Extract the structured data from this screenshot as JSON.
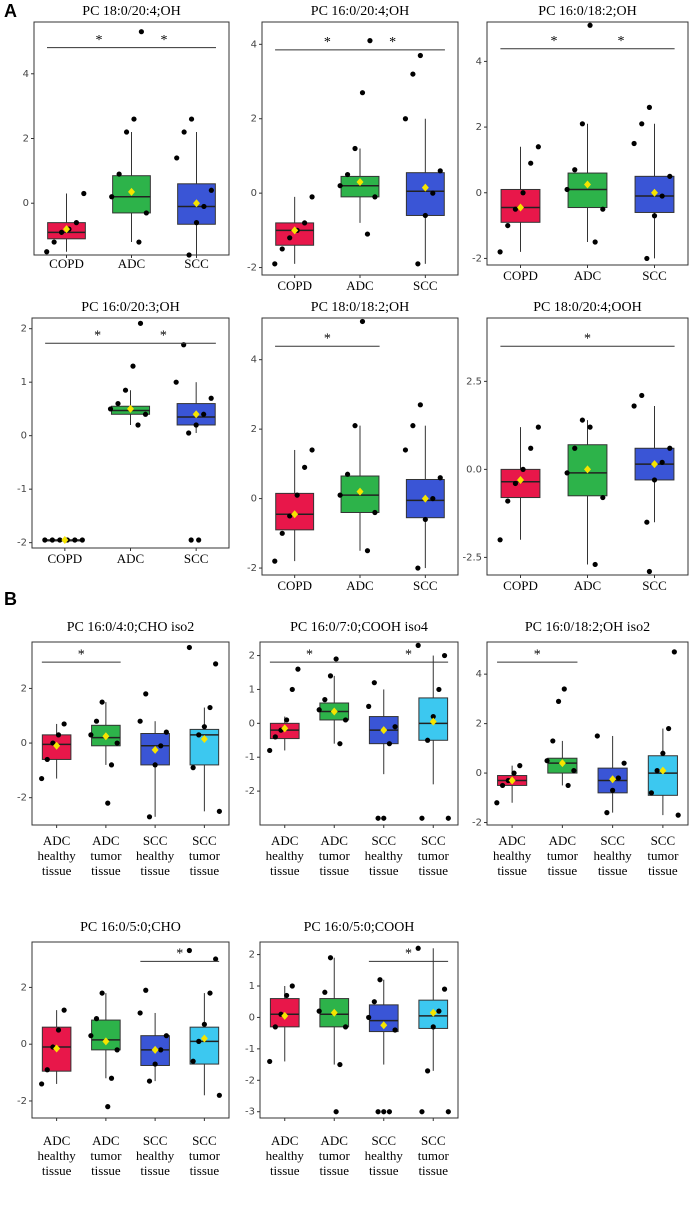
{
  "panel_labels": [
    "A",
    "B"
  ],
  "chart_data": [
    {
      "type": "box",
      "title": "PC 18:0/20:4;OH",
      "categories": [
        "COPD",
        "ADC",
        "SCC"
      ],
      "colors": [
        "#e8174a",
        "#2db34a",
        "#3a55d6"
      ],
      "ylim": [
        -1.6,
        5.6
      ],
      "yticks": [
        0,
        2,
        4
      ],
      "whisker_low": [
        -1.5,
        -1.2,
        -1.6
      ],
      "q1": [
        -1.1,
        -0.3,
        -0.65
      ],
      "median": [
        -0.9,
        0.2,
        -0.1
      ],
      "q3": [
        -0.6,
        0.85,
        0.6
      ],
      "whisker_high": [
        0.3,
        2.2,
        2.2
      ],
      "mean": [
        -0.8,
        0.35,
        0.0
      ],
      "points": [
        [
          -1.5,
          -1.2,
          -0.9,
          -0.8,
          -0.6,
          0.3
        ],
        [
          -1.2,
          -0.3,
          0.2,
          0.9,
          2.2,
          2.6,
          5.3
        ],
        [
          -1.6,
          -0.6,
          -0.1,
          0.4,
          1.4,
          2.2,
          2.6
        ]
      ],
      "significance": [
        {
          "label": "*",
          "from": "COPD",
          "to": "ADC"
        },
        {
          "label": "*",
          "from": "ADC",
          "to": "SCC"
        }
      ]
    },
    {
      "type": "box",
      "title": "PC 16:0/20:4;OH",
      "categories": [
        "COPD",
        "ADC",
        "SCC"
      ],
      "colors": [
        "#e8174a",
        "#2db34a",
        "#3a55d6"
      ],
      "ylim": [
        -2.2,
        4.6
      ],
      "yticks": [
        -2,
        0,
        2,
        4
      ],
      "whisker_low": [
        -1.9,
        -0.8,
        -1.9
      ],
      "q1": [
        -1.4,
        -0.1,
        -0.6
      ],
      "median": [
        -1.0,
        0.2,
        0.05
      ],
      "q3": [
        -0.8,
        0.45,
        0.55
      ],
      "whisker_high": [
        -0.1,
        1.2,
        2.0
      ],
      "mean": [
        -1.0,
        0.3,
        0.15
      ],
      "points": [
        [
          -1.9,
          -1.5,
          -1.2,
          -1.0,
          -0.8,
          -0.1
        ],
        [
          -1.1,
          -0.1,
          0.2,
          0.5,
          1.2,
          2.7,
          4.1
        ],
        [
          -1.9,
          -0.6,
          0.0,
          0.6,
          2.0,
          3.2,
          3.7
        ]
      ],
      "significance": [
        {
          "label": "*",
          "from": "COPD",
          "to": "ADC"
        },
        {
          "label": "*",
          "from": "ADC",
          "to": "SCC"
        }
      ]
    },
    {
      "type": "box",
      "title": "PC 16:0/18:2;OH",
      "categories": [
        "COPD",
        "ADC",
        "SCC"
      ],
      "colors": [
        "#e8174a",
        "#2db34a",
        "#3a55d6"
      ],
      "ylim": [
        -2.2,
        5.2
      ],
      "yticks": [
        -2,
        0,
        2,
        4
      ],
      "whisker_low": [
        -1.8,
        -1.5,
        -2.0
      ],
      "q1": [
        -0.9,
        -0.45,
        -0.6
      ],
      "median": [
        -0.45,
        0.1,
        -0.1
      ],
      "q3": [
        0.1,
        0.6,
        0.5
      ],
      "whisker_high": [
        1.4,
        2.1,
        2.1
      ],
      "mean": [
        -0.45,
        0.25,
        0.0
      ],
      "points": [
        [
          -1.8,
          -1.0,
          -0.5,
          0.0,
          0.9,
          1.4
        ],
        [
          -1.5,
          -0.5,
          0.1,
          0.7,
          2.1,
          5.1
        ],
        [
          -2.0,
          -0.7,
          -0.1,
          0.5,
          1.5,
          2.1,
          2.6
        ]
      ],
      "significance": [
        {
          "label": "*",
          "from": "COPD",
          "to": "ADC"
        },
        {
          "label": "*",
          "from": "ADC",
          "to": "SCC"
        }
      ]
    },
    {
      "type": "box",
      "title": "PC 16:0/20:3;OH",
      "categories": [
        "COPD",
        "ADC",
        "SCC"
      ],
      "colors": [
        "#e8174a",
        "#2db34a",
        "#3a55d6"
      ],
      "ylim": [
        -2.1,
        2.2
      ],
      "yticks": [
        -2,
        -1,
        0,
        1,
        2
      ],
      "whisker_low": [
        -1.95,
        0.2,
        0.05
      ],
      "q1": [
        -1.95,
        0.4,
        0.2
      ],
      "median": [
        -1.95,
        0.47,
        0.35
      ],
      "q3": [
        -1.95,
        0.55,
        0.6
      ],
      "whisker_high": [
        -1.95,
        0.85,
        1.0
      ],
      "mean": [
        -1.95,
        0.5,
        0.4
      ],
      "points": [
        [
          -1.95,
          -1.95,
          -1.95,
          -1.95,
          -1.95,
          -1.95
        ],
        [
          0.2,
          0.4,
          0.5,
          0.6,
          0.85,
          1.3,
          2.1
        ],
        [
          0.05,
          0.2,
          0.4,
          0.7,
          1.0,
          1.7,
          -1.95,
          -1.95
        ]
      ],
      "significance": [
        {
          "label": "*",
          "from": "COPD",
          "to": "ADC"
        },
        {
          "label": "*",
          "from": "ADC",
          "to": "SCC"
        }
      ]
    },
    {
      "type": "box",
      "title": "PC 18:0/18:2;OH",
      "categories": [
        "COPD",
        "ADC",
        "SCC"
      ],
      "colors": [
        "#e8174a",
        "#2db34a",
        "#3a55d6"
      ],
      "ylim": [
        -2.2,
        5.2
      ],
      "yticks": [
        -2,
        0,
        2,
        4
      ],
      "whisker_low": [
        -1.8,
        -1.5,
        -2.0
      ],
      "q1": [
        -0.9,
        -0.4,
        -0.55
      ],
      "median": [
        -0.45,
        0.1,
        -0.05
      ],
      "q3": [
        0.15,
        0.65,
        0.55
      ],
      "whisker_high": [
        1.4,
        2.1,
        2.1
      ],
      "mean": [
        -0.45,
        0.2,
        0.0
      ],
      "points": [
        [
          -1.8,
          -1.0,
          -0.5,
          0.1,
          0.9,
          1.4
        ],
        [
          -1.5,
          -0.4,
          0.1,
          0.7,
          2.1,
          5.1
        ],
        [
          -2.0,
          -0.6,
          0.0,
          0.6,
          1.4,
          2.1,
          2.7
        ]
      ],
      "significance": [
        {
          "label": "*",
          "from": "COPD",
          "to": "ADC"
        }
      ]
    },
    {
      "type": "box",
      "title": "PC 18:0/20:4;OOH",
      "categories": [
        "COPD",
        "ADC",
        "SCC"
      ],
      "colors": [
        "#e8174a",
        "#2db34a",
        "#3a55d6"
      ],
      "ylim": [
        -3.0,
        4.3
      ],
      "yticks": [
        -2.5,
        {
          "value": 0,
          "label": "0.0"
        },
        2.5
      ],
      "whisker_low": [
        -2.0,
        -2.7,
        -1.5
      ],
      "q1": [
        -0.8,
        -0.75,
        -0.3
      ],
      "median": [
        -0.35,
        -0.1,
        0.15
      ],
      "q3": [
        0.0,
        0.7,
        0.6
      ],
      "whisker_high": [
        1.2,
        1.4,
        1.8
      ],
      "mean": [
        -0.3,
        0.0,
        0.15
      ],
      "points": [
        [
          -2.0,
          -0.9,
          -0.4,
          0.0,
          0.6,
          1.2
        ],
        [
          -2.7,
          -0.8,
          -0.1,
          0.6,
          1.4,
          1.2
        ],
        [
          -1.5,
          -0.3,
          0.2,
          0.6,
          1.8,
          2.1,
          -2.9
        ]
      ],
      "significance": [
        {
          "label": "*",
          "from": "COPD",
          "to": "SCC"
        }
      ]
    },
    {
      "type": "box",
      "title": "PC 16:0/4:0;CHO iso2",
      "categories": [
        "ADC healthy tissue",
        "ADC tumor tissue",
        "SCC healthy tissue",
        "SCC tumor tissue"
      ],
      "colors": [
        "#e8174a",
        "#2db34a",
        "#3a55d6",
        "#3cc8f0"
      ],
      "ylim": [
        -3.0,
        3.7
      ],
      "yticks": [
        -2,
        0,
        2
      ],
      "whisker_low": [
        -1.3,
        -0.8,
        -2.7,
        -2.5
      ],
      "q1": [
        -0.6,
        -0.1,
        -0.8,
        -0.8
      ],
      "median": [
        -0.05,
        0.2,
        -0.1,
        0.3
      ],
      "q3": [
        0.3,
        0.65,
        0.35,
        0.5
      ],
      "whisker_high": [
        0.7,
        1.5,
        0.8,
        1.3
      ],
      "mean": [
        -0.1,
        0.25,
        -0.25,
        0.15
      ],
      "points": [
        [
          -1.3,
          -0.6,
          0.0,
          0.3,
          0.7
        ],
        [
          -0.8,
          0.0,
          0.3,
          0.8,
          1.5,
          -2.2
        ],
        [
          -2.7,
          -0.8,
          -0.1,
          0.4,
          0.8,
          1.8
        ],
        [
          -2.5,
          -0.9,
          0.3,
          0.6,
          1.3,
          2.9,
          3.5
        ]
      ],
      "significance": [
        {
          "label": "*",
          "from": "ADC healthy tissue",
          "to": "ADC tumor tissue"
        }
      ]
    },
    {
      "type": "box",
      "title": "PC 16:0/7:0;COOH iso4",
      "categories": [
        "ADC healthy tissue",
        "ADC tumor tissue",
        "SCC healthy tissue",
        "SCC tumor tissue"
      ],
      "colors": [
        "#e8174a",
        "#2db34a",
        "#3a55d6",
        "#3cc8f0"
      ],
      "ylim": [
        -3.0,
        2.4
      ],
      "yticks": [
        -2,
        -1,
        0,
        1,
        2
      ],
      "whisker_low": [
        -0.8,
        -0.6,
        -1.5,
        -1.8
      ],
      "q1": [
        -0.45,
        0.1,
        -0.6,
        -0.5
      ],
      "median": [
        -0.2,
        0.35,
        -0.2,
        0.0
      ],
      "q3": [
        0.0,
        0.6,
        0.2,
        0.75
      ],
      "whisker_high": [
        0.2,
        1.4,
        1.0,
        2.0
      ],
      "mean": [
        -0.15,
        0.35,
        -0.2,
        0.05
      ],
      "points": [
        [
          -0.8,
          -0.4,
          -0.2,
          0.1,
          1.0,
          1.6
        ],
        [
          -0.6,
          0.1,
          0.4,
          0.7,
          1.4,
          1.9
        ],
        [
          -2.8,
          -2.8,
          -0.6,
          -0.1,
          0.5,
          1.2
        ],
        [
          -2.8,
          -2.8,
          -0.5,
          0.2,
          1.0,
          2.0,
          2.3
        ]
      ],
      "significance": [
        {
          "label": "*",
          "from": "ADC healthy tissue",
          "to": "ADC tumor tissue"
        },
        {
          "label": "*",
          "from": "SCC healthy tissue",
          "to": "SCC tumor tissue"
        }
      ]
    },
    {
      "type": "box",
      "title": "PC 16:0/18:2;OH iso2",
      "categories": [
        "ADC healthy tissue",
        "ADC tumor tissue",
        "SCC healthy tissue",
        "SCC tumor tissue"
      ],
      "colors": [
        "#e8174a",
        "#2db34a",
        "#3a55d6",
        "#3cc8f0"
      ],
      "ylim": [
        -2.1,
        5.3
      ],
      "yticks": [
        -2,
        0,
        2,
        4
      ],
      "whisker_low": [
        -1.2,
        -0.5,
        -1.6,
        -1.7
      ],
      "q1": [
        -0.5,
        0.0,
        -0.8,
        -0.9
      ],
      "median": [
        -0.3,
        0.4,
        -0.3,
        0.0
      ],
      "q3": [
        -0.1,
        0.6,
        0.2,
        0.7
      ],
      "whisker_high": [
        0.3,
        1.3,
        1.5,
        1.8
      ],
      "mean": [
        -0.3,
        0.4,
        -0.25,
        0.1
      ],
      "points": [
        [
          -1.2,
          -0.5,
          -0.3,
          0.0,
          0.3
        ],
        [
          -0.5,
          0.1,
          0.5,
          1.3,
          2.9,
          3.4
        ],
        [
          -1.6,
          -0.7,
          -0.2,
          0.4,
          1.5
        ],
        [
          -1.7,
          -0.8,
          0.1,
          0.8,
          1.8,
          4.9
        ]
      ],
      "significance": [
        {
          "label": "*",
          "from": "ADC healthy tissue",
          "to": "ADC tumor tissue"
        }
      ]
    },
    {
      "type": "box",
      "title": "PC 16:0/5:0;CHO",
      "categories": [
        "ADC healthy tissue",
        "ADC tumor tissue",
        "SCC healthy tissue",
        "SCC tumor tissue"
      ],
      "colors": [
        "#e8174a",
        "#2db34a",
        "#3a55d6",
        "#3cc8f0"
      ],
      "ylim": [
        -2.6,
        3.6
      ],
      "yticks": [
        -2,
        0,
        2
      ],
      "whisker_low": [
        -1.4,
        -1.2,
        -1.3,
        -1.8
      ],
      "q1": [
        -0.95,
        -0.2,
        -0.75,
        -0.7
      ],
      "median": [
        -0.1,
        0.15,
        -0.2,
        0.1
      ],
      "q3": [
        0.6,
        0.85,
        0.3,
        0.6
      ],
      "whisker_high": [
        1.2,
        1.8,
        1.1,
        1.8
      ],
      "mean": [
        -0.15,
        0.1,
        -0.2,
        0.2
      ],
      "points": [
        [
          -1.4,
          -0.9,
          -0.1,
          0.5,
          1.2
        ],
        [
          -1.2,
          -0.2,
          0.3,
          0.9,
          1.8,
          -2.2
        ],
        [
          -1.3,
          -0.7,
          -0.2,
          0.3,
          1.1,
          1.9
        ],
        [
          -1.8,
          -0.6,
          0.1,
          0.7,
          1.8,
          3.0,
          3.3
        ]
      ],
      "significance": [
        {
          "label": "*",
          "from": "SCC healthy tissue",
          "to": "SCC tumor tissue"
        }
      ]
    },
    {
      "type": "box",
      "title": "PC 16:0/5:0;COOH",
      "categories": [
        "ADC healthy tissue",
        "ADC tumor tissue",
        "SCC healthy tissue",
        "SCC tumor tissue"
      ],
      "colors": [
        "#e8174a",
        "#2db34a",
        "#3a55d6",
        "#3cc8f0"
      ],
      "ylim": [
        -3.2,
        2.4
      ],
      "yticks": [
        -3,
        -2,
        -1,
        0,
        1,
        2
      ],
      "whisker_low": [
        -1.4,
        -1.5,
        -1.5,
        -1.7
      ],
      "q1": [
        -0.3,
        -0.3,
        -0.45,
        -0.35
      ],
      "median": [
        0.1,
        0.1,
        -0.1,
        0.05
      ],
      "q3": [
        0.6,
        0.6,
        0.4,
        0.55
      ],
      "whisker_high": [
        1.0,
        1.9,
        1.2,
        2.2
      ],
      "mean": [
        0.05,
        0.15,
        -0.25,
        0.15
      ],
      "points": [
        [
          -1.4,
          -0.3,
          0.1,
          0.7,
          1.0
        ],
        [
          -1.5,
          -0.3,
          0.2,
          0.8,
          1.9,
          -3.0
        ],
        [
          -3.0,
          -3.0,
          -3.0,
          -0.4,
          0.0,
          0.5,
          1.2
        ],
        [
          -3.0,
          -3.0,
          -1.7,
          -0.3,
          0.2,
          0.9,
          2.2
        ]
      ],
      "significance": [
        {
          "label": "*",
          "from": "SCC healthy tissue",
          "to": "SCC tumor tissue"
        }
      ]
    }
  ]
}
